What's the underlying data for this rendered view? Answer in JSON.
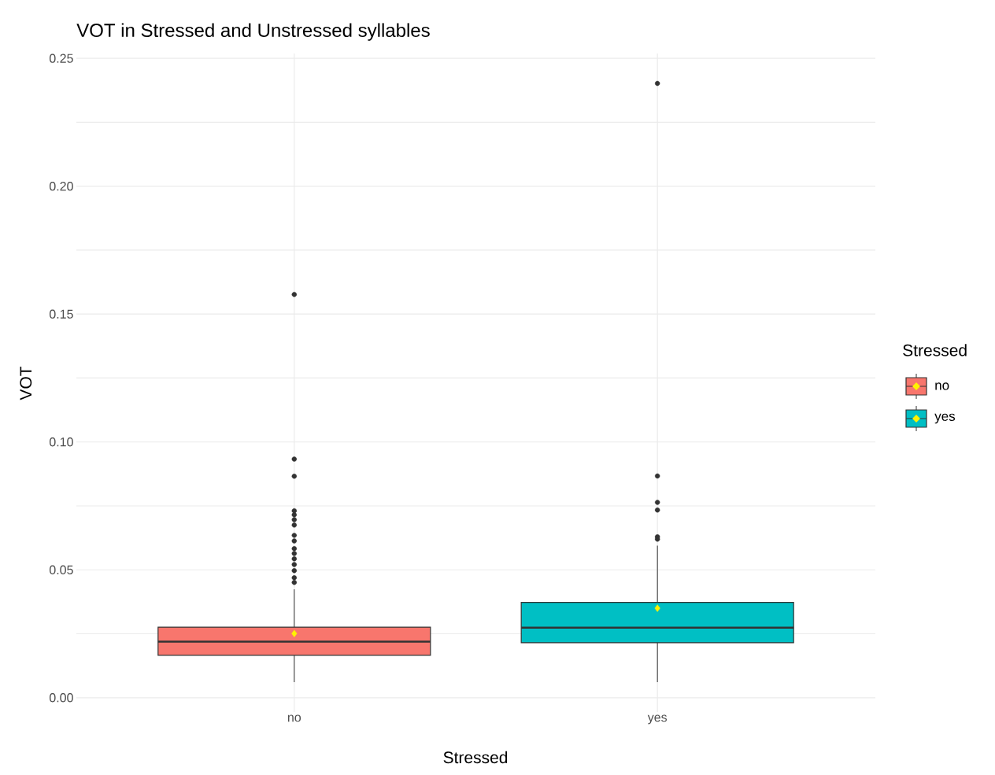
{
  "chart_data": {
    "type": "box",
    "title": "VOT in Stressed and Unstressed syllables",
    "xlabel": "Stressed",
    "ylabel": "VOT",
    "legend_title": "Stressed",
    "categories": [
      "no",
      "yes"
    ],
    "series": [
      {
        "name": "no",
        "color": "#f8766d",
        "boxes": [
          {
            "low": 0.0061,
            "q1": 0.0166,
            "median": 0.0219,
            "q3": 0.0276,
            "high": 0.0424,
            "mean": 0.0251,
            "outliers": [
              0.0451,
              0.0469,
              0.0497,
              0.0521,
              0.0543,
              0.0564,
              0.0583,
              0.0613,
              0.0635,
              0.0675,
              0.0696,
              0.0715,
              0.0731,
              0.0866,
              0.0933,
              0.1577
            ]
          },
          null
        ]
      },
      {
        "name": "yes",
        "color": "#00bfc4",
        "boxes": [
          null,
          {
            "low": 0.0061,
            "q1": 0.0215,
            "median": 0.0274,
            "q3": 0.0373,
            "high": 0.0595,
            "mean": 0.035,
            "outliers": [
              0.062,
              0.0629,
              0.0734,
              0.0764,
              0.0867,
              0.2402
            ]
          }
        ]
      }
    ],
    "ylim": [
      -0.0056,
      0.2519
    ],
    "yticks": [
      {
        "value": 0,
        "label": "0.00"
      },
      {
        "value": 0.025,
        "label": null
      },
      {
        "value": 0.05,
        "label": "0.05"
      },
      {
        "value": 0.075,
        "label": null
      },
      {
        "value": 0.1,
        "label": "0.10"
      },
      {
        "value": 0.125,
        "label": null
      },
      {
        "value": 0.15,
        "label": "0.15"
      },
      {
        "value": 0.175,
        "label": null
      },
      {
        "value": 0.2,
        "label": "0.20"
      },
      {
        "value": 0.225,
        "label": null
      },
      {
        "value": 0.25,
        "label": "0.25"
      }
    ],
    "grid": true,
    "legend": "right"
  }
}
